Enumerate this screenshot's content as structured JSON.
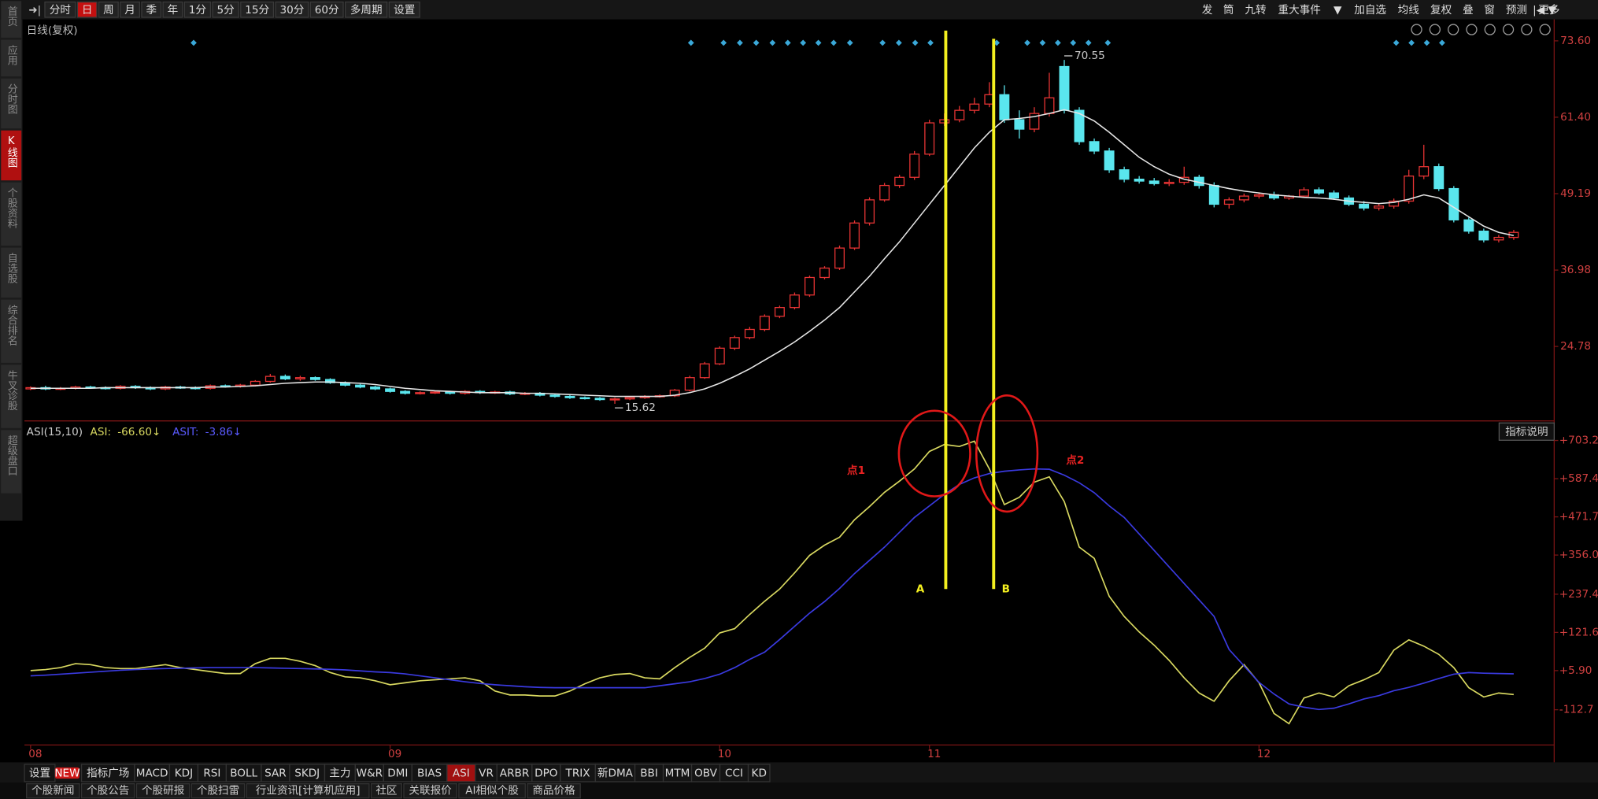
{
  "toolbar": {
    "periods": [
      "分时",
      "日",
      "周",
      "月",
      "季",
      "年",
      "1分",
      "5分",
      "15分",
      "30分",
      "60分",
      "多周期",
      "设置"
    ],
    "tools": [
      "发",
      "筒",
      "九转",
      "重大事件",
      "▼",
      "加自选",
      "均线",
      "复权",
      "叠",
      "窗",
      "预测",
      "更多"
    ]
  },
  "sidebar": [
    "首页",
    "应用",
    "分时图",
    "K线图",
    "个股资料",
    "自选股",
    "综合排名",
    "牛叉诊股",
    "超级盘口"
  ],
  "chart_data": [
    {
      "type": "candlestick",
      "title": "日线(复权)",
      "categories": [
        "08",
        null,
        null,
        null,
        null,
        null,
        null,
        null,
        null,
        null,
        null,
        null,
        null,
        null,
        null,
        null,
        null,
        null,
        null,
        null,
        null,
        null,
        null,
        null,
        "09",
        null,
        null,
        null,
        null,
        null,
        null,
        null,
        null,
        null,
        null,
        null,
        null,
        null,
        null,
        null,
        null,
        null,
        null,
        null,
        null,
        null,
        "10",
        null,
        null,
        null,
        null,
        null,
        null,
        null,
        null,
        null,
        null,
        null,
        null,
        null,
        "11",
        null,
        null,
        null,
        null,
        null,
        null,
        null,
        null,
        null,
        null,
        null,
        null,
        null,
        null,
        null,
        null,
        null,
        null,
        null,
        null,
        null,
        "12",
        null,
        null,
        null,
        null,
        null,
        null,
        null,
        null,
        null,
        null,
        null,
        null,
        null,
        null,
        null,
        null,
        null
      ],
      "open": [
        18.0,
        18.2,
        18.0,
        18.1,
        18.3,
        18.2,
        18.1,
        18.4,
        18.2,
        18.0,
        18.3,
        18.2,
        18.1,
        18.5,
        18.4,
        18.6,
        19.2,
        20.0,
        19.6,
        19.8,
        19.5,
        19.0,
        18.6,
        18.3,
        18.0,
        17.6,
        17.3,
        17.4,
        17.5,
        17.3,
        17.6,
        17.4,
        17.5,
        17.2,
        17.3,
        17.0,
        16.8,
        16.6,
        16.5,
        16.3,
        16.4,
        16.6,
        16.8,
        16.9,
        17.8,
        19.8,
        22.0,
        24.5,
        26.2,
        27.5,
        29.6,
        31.0,
        33.0,
        35.8,
        37.3,
        40.5,
        44.5,
        48.2,
        50.5,
        51.8,
        55.5,
        60.5,
        61.0,
        62.5,
        63.5,
        65.0,
        61.0,
        59.5,
        62.0,
        69.5,
        62.5,
        57.5,
        56.0,
        53.0,
        51.5,
        51.2,
        50.8,
        51.0,
        51.8,
        50.5,
        47.5,
        48.2,
        48.8,
        49.0,
        48.5,
        48.8,
        49.8,
        49.3,
        48.5,
        47.5,
        46.9,
        47.2,
        48.0,
        52.0,
        53.5,
        50.0,
        45.0,
        43.2,
        41.8,
        42.2
      ],
      "high": [
        18.4,
        18.5,
        18.3,
        18.5,
        18.5,
        18.4,
        18.6,
        18.6,
        18.4,
        18.5,
        18.5,
        18.4,
        18.7,
        18.7,
        18.8,
        19.4,
        20.4,
        20.3,
        20.1,
        20.0,
        19.7,
        19.2,
        18.8,
        18.5,
        18.2,
        17.8,
        17.6,
        17.7,
        17.7,
        17.8,
        17.8,
        17.7,
        17.7,
        17.5,
        17.5,
        17.2,
        17.0,
        16.8,
        16.7,
        16.6,
        16.8,
        17.0,
        17.1,
        18.0,
        20.1,
        22.3,
        24.8,
        26.5,
        27.9,
        29.9,
        31.3,
        33.4,
        36.1,
        37.6,
        40.9,
        44.9,
        48.6,
        50.9,
        52.2,
        56.0,
        61.0,
        62.0,
        63.2,
        64.5,
        67.0,
        66.5,
        62.5,
        63.0,
        68.5,
        70.55,
        63.0,
        58.0,
        56.5,
        53.5,
        52.0,
        51.7,
        51.5,
        53.5,
        52.2,
        51.0,
        48.6,
        49.2,
        49.4,
        49.5,
        49.0,
        50.2,
        50.2,
        49.7,
        48.9,
        48.0,
        47.6,
        48.4,
        53.0,
        57.0,
        54.0,
        50.4,
        45.4,
        43.6,
        42.6,
        43.4
      ],
      "low": [
        17.8,
        17.8,
        17.8,
        17.9,
        18.0,
        17.9,
        17.9,
        18.0,
        17.8,
        17.8,
        18.0,
        17.9,
        17.9,
        18.2,
        18.2,
        18.4,
        19.0,
        19.4,
        19.3,
        19.3,
        18.8,
        18.4,
        18.1,
        17.8,
        17.4,
        17.1,
        17.1,
        17.2,
        17.1,
        17.1,
        17.2,
        17.2,
        17.0,
        17.0,
        16.8,
        16.6,
        16.4,
        16.3,
        16.1,
        15.62,
        16.2,
        16.4,
        16.6,
        16.7,
        17.6,
        19.6,
        21.8,
        24.2,
        25.9,
        27.2,
        29.3,
        30.7,
        32.7,
        35.5,
        37.0,
        40.2,
        44.1,
        47.9,
        50.1,
        51.4,
        55.2,
        60.0,
        60.6,
        62.0,
        63.0,
        60.5,
        58.0,
        59.0,
        61.5,
        62.0,
        57.0,
        55.5,
        52.5,
        51.0,
        50.8,
        50.5,
        50.4,
        50.6,
        50.0,
        47.0,
        46.8,
        47.8,
        48.4,
        48.2,
        48.2,
        48.5,
        49.0,
        48.2,
        47.2,
        46.5,
        46.5,
        46.8,
        47.6,
        51.5,
        49.6,
        44.6,
        42.8,
        41.4,
        41.4,
        41.8
      ],
      "close": [
        18.2,
        18.0,
        18.1,
        18.3,
        18.2,
        18.1,
        18.4,
        18.2,
        18.0,
        18.3,
        18.2,
        18.1,
        18.5,
        18.4,
        18.6,
        19.2,
        20.0,
        19.6,
        19.8,
        19.5,
        19.0,
        18.6,
        18.3,
        18.0,
        17.6,
        17.3,
        17.4,
        17.5,
        17.3,
        17.6,
        17.4,
        17.5,
        17.2,
        17.3,
        17.0,
        16.8,
        16.6,
        16.5,
        16.3,
        16.4,
        16.6,
        16.8,
        16.9,
        17.8,
        19.8,
        22.0,
        24.5,
        26.2,
        27.5,
        29.6,
        31.0,
        33.0,
        35.8,
        37.3,
        40.5,
        44.5,
        48.2,
        50.5,
        51.8,
        55.5,
        60.5,
        61.0,
        62.5,
        63.5,
        65.0,
        61.0,
        59.5,
        62.0,
        64.5,
        62.5,
        57.5,
        56.0,
        53.0,
        51.5,
        51.2,
        50.8,
        51.0,
        51.8,
        50.5,
        47.5,
        48.2,
        48.8,
        49.0,
        48.5,
        48.8,
        49.8,
        49.3,
        48.5,
        47.5,
        46.9,
        47.2,
        48.0,
        52.0,
        53.5,
        50.0,
        45.0,
        43.2,
        41.8,
        42.2,
        43.0
      ],
      "ma": {
        "color": "#e6e6e6",
        "values": [
          18.1,
          18.1,
          18.1,
          18.1,
          18.1,
          18.2,
          18.2,
          18.2,
          18.2,
          18.2,
          18.2,
          18.2,
          18.3,
          18.3,
          18.4,
          18.5,
          18.7,
          18.9,
          19.0,
          19.1,
          19.1,
          19.0,
          18.9,
          18.7,
          18.4,
          18.1,
          17.9,
          17.7,
          17.6,
          17.5,
          17.4,
          17.4,
          17.4,
          17.3,
          17.3,
          17.2,
          17.1,
          17.0,
          16.9,
          16.8,
          16.8,
          16.8,
          16.8,
          17.0,
          17.4,
          18.0,
          18.9,
          20.0,
          21.2,
          22.6,
          24.0,
          25.5,
          27.2,
          29.0,
          31.0,
          33.5,
          36.0,
          38.8,
          41.5,
          44.5,
          47.5,
          50.5,
          53.5,
          56.5,
          59.0,
          61.0,
          61.2,
          61.5,
          62.0,
          62.6,
          62.0,
          60.8,
          59.0,
          57.0,
          55.0,
          53.5,
          52.3,
          51.5,
          51.0,
          50.5,
          50.0,
          49.6,
          49.3,
          49.0,
          48.8,
          48.6,
          48.5,
          48.3,
          48.0,
          47.8,
          47.6,
          47.8,
          48.3,
          49.0,
          48.5,
          47.0,
          45.5,
          44.0,
          43.0,
          42.5
        ]
      },
      "up_color": "#e83434",
      "down_color": "#5ae6ee",
      "ylim": [
        13.05,
        76.87
      ],
      "yticks": [
        {
          "value": 73.6,
          "label": "73.60"
        },
        {
          "value": 61.4,
          "label": "61.40"
        },
        49.19,
        36.98,
        24.78
      ]
    },
    {
      "type": "line",
      "title": "ASI(15,10)",
      "series": [
        {
          "name": "ASI:",
          "readout": "-66.60↓",
          "color": "#d8d860",
          "values": [
            5.9,
            9,
            15,
            27,
            24,
            15,
            12,
            12,
            18,
            24,
            15,
            9,
            3,
            -3,
            -3,
            27,
            43,
            43,
            34,
            21,
            0,
            -13,
            -16,
            -25,
            -37,
            -31,
            -25,
            -22,
            -19,
            -16,
            -25,
            -56,
            -68,
            -68,
            -71,
            -71,
            -56,
            -34,
            -16,
            -6,
            -3,
            -16,
            -19,
            15,
            46,
            74,
            120,
            133,
            176,
            216,
            253,
            302,
            355,
            386,
            410,
            463,
            503,
            546,
            580,
            617,
            670,
            691,
            685,
            701,
            617,
            509,
            531,
            577,
            593,
            518,
            380,
            346,
            231,
            170,
            123,
            83,
            37,
            -16,
            -62,
            -87,
            -25,
            24,
            -31,
            -124,
            -155,
            -77,
            -62,
            -74,
            -40,
            -22,
            0,
            68,
            99,
            80,
            55,
            15,
            -46,
            -74,
            -62,
            -66.6
          ]
        },
        {
          "name": "ASIT:",
          "readout": "-3.86↓",
          "color": "#3a3ae0",
          "values": [
            -10,
            -8,
            -5,
            -2,
            1,
            4,
            7,
            9,
            11,
            12,
            13,
            14,
            15,
            15,
            15,
            15,
            14,
            13,
            12,
            11,
            10,
            8,
            5,
            2,
            0,
            -4,
            -10,
            -16,
            -22,
            -28,
            -33,
            -37,
            -40,
            -43,
            -45,
            -46,
            -46,
            -46,
            -46,
            -46,
            -46,
            -46,
            -40,
            -34,
            -28,
            -18,
            -5,
            15,
            40,
            62,
            100,
            140,
            180,
            215,
            255,
            300,
            340,
            380,
            425,
            470,
            505,
            540,
            570,
            590,
            603,
            610,
            614,
            617,
            616,
            598,
            575,
            545,
            505,
            470,
            420,
            370,
            320,
            270,
            220,
            170,
            70,
            20,
            -30,
            -65,
            -95,
            -105,
            -112,
            -108,
            -95,
            -80,
            -70,
            -55,
            -45,
            -32,
            -18,
            -5,
            0,
            -2,
            -3,
            -3.86
          ]
        }
      ],
      "ylim": [
        -216.4,
        759.4
      ],
      "yticks": [
        {
          "value": 703.2,
          "label": "+703.2"
        },
        {
          "value": 587.4,
          "label": "+587.4"
        },
        {
          "value": 471.7,
          "label": "+471.7"
        },
        {
          "value": 356.0,
          "label": "+356.0"
        },
        {
          "value": 237.4,
          "label": "+237.4"
        },
        {
          "value": 121.6,
          "label": "+121.6"
        },
        {
          "value": 5.9,
          "label": "+5.90"
        },
        -112.7
      ],
      "annotations": [
        "点1",
        "点2"
      ],
      "markers": [
        "A",
        "B"
      ]
    }
  ],
  "indicator_help": "指标说明",
  "indicator_tabs": [
    "设置",
    "NEW",
    "指标广场",
    "MACD",
    "KDJ",
    "RSI",
    "BOLL",
    "SAR",
    "SKDJ",
    "主力",
    "W&R",
    "DMI",
    "BIAS",
    "ASI",
    "VR",
    "ARBR",
    "DPO",
    "TRIX",
    "新DMA",
    "BBI",
    "MTM",
    "OBV",
    "CCI",
    "KD"
  ],
  "news_tabs": [
    "个股新闻",
    "个股公告",
    "个股研报",
    "个股扫雷",
    "行业资讯[计算机应用]",
    "社区",
    "关联报价",
    "AI相似个股",
    "商品价格"
  ]
}
